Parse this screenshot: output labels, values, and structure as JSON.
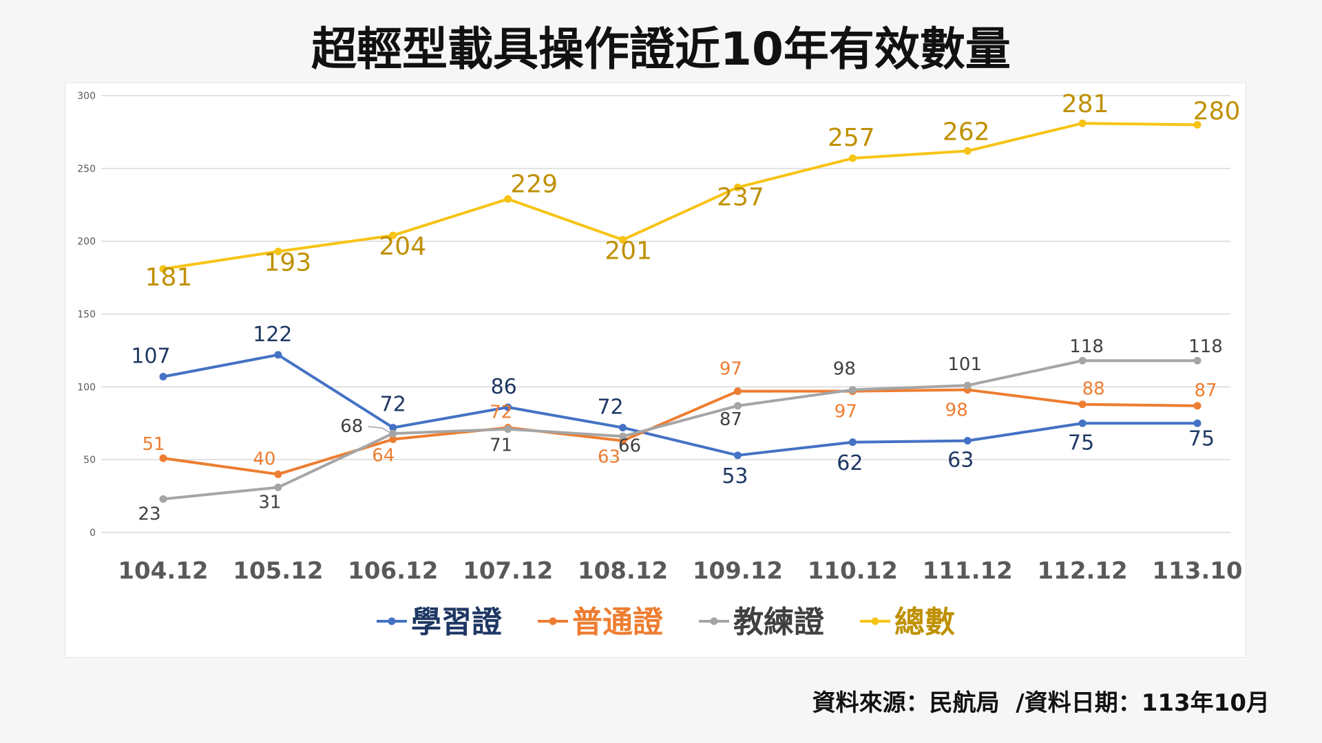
{
  "title": "超輕型載具操作證近10年有效數量",
  "source": "資料來源：民航局  /資料日期：113年10月",
  "chart_data": {
    "type": "line",
    "title": "",
    "xlabel": "",
    "ylabel": "",
    "ylim": [
      0,
      300
    ],
    "y_ticks": [
      "0",
      "50",
      "100",
      "150",
      "200",
      "250",
      "300"
    ],
    "grid": true,
    "legend_position": "bottom",
    "categories": [
      "104.12",
      "105.12",
      "106.12",
      "107.12",
      "108.12",
      "109.12",
      "110.12",
      "111.12",
      "112.12",
      "113.10"
    ],
    "series": [
      {
        "name": "學習證",
        "color": "#4472c4",
        "label_color": "#1f3864",
        "values": [
          107,
          122,
          72,
          86,
          72,
          53,
          62,
          63,
          75,
          75
        ]
      },
      {
        "name": "普通證",
        "color": "#ed7d31",
        "label_color": "#ed7d31",
        "values": [
          51,
          40,
          64,
          72,
          63,
          97,
          97,
          98,
          88,
          87
        ]
      },
      {
        "name": "教練證",
        "color": "#a5a5a5",
        "label_color": "#404040",
        "values": [
          23,
          31,
          68,
          71,
          66,
          87,
          98,
          101,
          118,
          118
        ]
      },
      {
        "name": "總數",
        "color": "#f7c315",
        "label_color": "#bf9000",
        "values": [
          181,
          193,
          204,
          229,
          201,
          237,
          257,
          262,
          281,
          280
        ]
      }
    ]
  }
}
